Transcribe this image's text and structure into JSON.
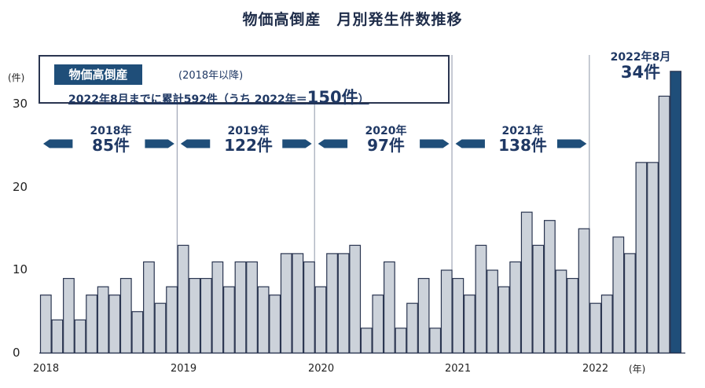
{
  "chart_data": {
    "type": "bar",
    "title": "物価高倒産　月別発生件数推移",
    "ylabel": "(件)",
    "xlabel_unit": "(年)",
    "ylim": [
      0,
      35
    ],
    "y_ticks": [
      0,
      10,
      20,
      30
    ],
    "x_tick_labels": [
      "2018",
      "2019",
      "2020",
      "2021",
      "2022"
    ],
    "months": [
      "2018-01",
      "2018-02",
      "2018-03",
      "2018-04",
      "2018-05",
      "2018-06",
      "2018-07",
      "2018-08",
      "2018-09",
      "2018-10",
      "2018-11",
      "2018-12",
      "2019-01",
      "2019-02",
      "2019-03",
      "2019-04",
      "2019-05",
      "2019-06",
      "2019-07",
      "2019-08",
      "2019-09",
      "2019-10",
      "2019-11",
      "2019-12",
      "2020-01",
      "2020-02",
      "2020-03",
      "2020-04",
      "2020-05",
      "2020-06",
      "2020-07",
      "2020-08",
      "2020-09",
      "2020-10",
      "2020-11",
      "2020-12",
      "2021-01",
      "2021-02",
      "2021-03",
      "2021-04",
      "2021-05",
      "2021-06",
      "2021-07",
      "2021-08",
      "2021-09",
      "2021-10",
      "2021-11",
      "2021-12",
      "2022-01",
      "2022-02",
      "2022-03",
      "2022-04",
      "2022-05",
      "2022-06",
      "2022-07",
      "2022-08"
    ],
    "values": [
      7,
      4,
      9,
      4,
      7,
      8,
      7,
      9,
      5,
      11,
      6,
      8,
      13,
      9,
      9,
      11,
      8,
      11,
      11,
      8,
      7,
      12,
      12,
      11,
      8,
      12,
      12,
      13,
      3,
      7,
      11,
      3,
      6,
      9,
      3,
      10,
      9,
      7,
      13,
      10,
      8,
      11,
      17,
      13,
      16,
      10,
      9,
      15,
      6,
      7,
      14,
      12,
      23,
      23,
      31,
      34
    ],
    "highlight_index": 55,
    "colors": {
      "bar": "#ccd2da",
      "bar_stroke": "#2a3550",
      "highlight": "#1f4e79",
      "divider": "#8e96a8"
    },
    "yearly_totals": [
      {
        "year": "2018年",
        "count": "85件"
      },
      {
        "year": "2019年",
        "count": "122件"
      },
      {
        "year": "2020年",
        "count": "97件"
      },
      {
        "year": "2021年",
        "count": "138件"
      }
    ],
    "annotation": {
      "line1": "2022年8月",
      "line2": "34件"
    }
  },
  "summary_box": {
    "badge": "物価高倒産",
    "since": "(2018年以降)",
    "text_pre": "2022年8月までに累計592件（うち 2022年＝",
    "text_big": "150件",
    "text_post": "）"
  }
}
